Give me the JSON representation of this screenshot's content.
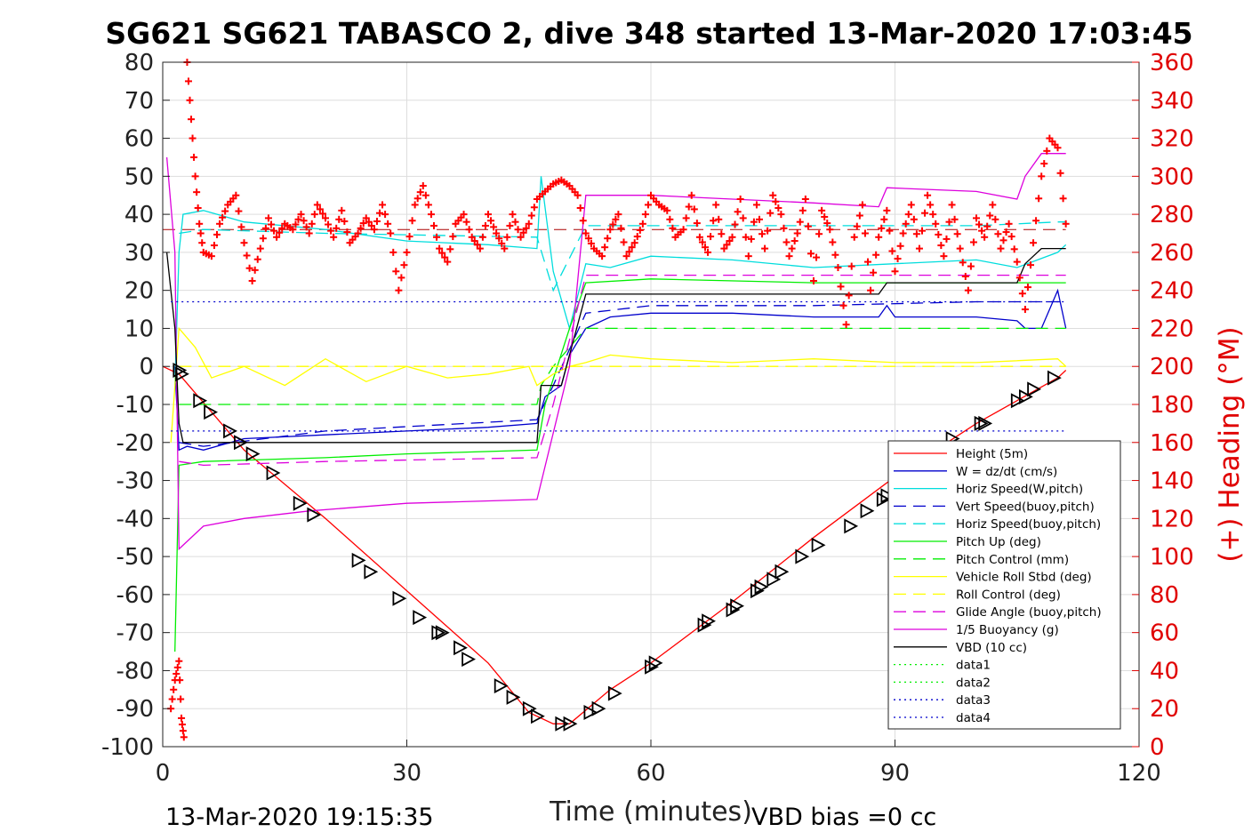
{
  "chart_data": {
    "type": "line",
    "title": "SG621 SG621 TABASCO 2, dive 348 started 13-Mar-2020 17:03:45",
    "xlabel": "Time (minutes)",
    "ylabel_right": "(+) Heading (°M)",
    "footer_left": "13-Mar-2020 19:15:35",
    "footer_right": "VBD bias =0 cc",
    "xlim": [
      0,
      120
    ],
    "ylim": [
      -100,
      80
    ],
    "ylim_right": [
      0,
      360
    ],
    "x_ticks": [
      "0",
      "30",
      "60",
      "90",
      "120"
    ],
    "y_ticks": [
      "80",
      "70",
      "60",
      "50",
      "40",
      "30",
      "20",
      "10",
      "0",
      "-10",
      "-20",
      "-30",
      "-40",
      "-50",
      "-60",
      "-70",
      "-80",
      "-90",
      "-100"
    ],
    "y_ticks_right": [
      "360",
      "340",
      "320",
      "300",
      "280",
      "260",
      "240",
      "220",
      "200",
      "180",
      "160",
      "140",
      "120",
      "100",
      "80",
      "60",
      "40",
      "20",
      "0"
    ],
    "grid": true,
    "legend_position": "bottom-right",
    "series": [
      {
        "name": "Height (5m)",
        "color": "#ff0000",
        "style": "solid",
        "x": [
          0,
          2,
          10,
          20,
          30,
          40,
          45,
          48,
          50,
          55,
          60,
          70,
          80,
          90,
          100,
          110,
          111
        ],
        "y": [
          0,
          -2,
          -22,
          -40,
          -59,
          -78,
          -91,
          -94,
          -94,
          -85,
          -78,
          -62,
          -45,
          -29,
          -15,
          -3,
          -1
        ]
      },
      {
        "name": "W = dz/dt (cm/s)",
        "color": "#0000cc",
        "style": "solid",
        "x": [
          1.5,
          2,
          3,
          5,
          10,
          20,
          30,
          40,
          46,
          47,
          49,
          50,
          52,
          55,
          60,
          70,
          80,
          88,
          89,
          90,
          100,
          105,
          106,
          108,
          110,
          111
        ],
        "y": [
          0,
          -22,
          -21,
          -22,
          -19,
          -18,
          -17,
          -16,
          -15,
          -8,
          -5,
          3,
          10,
          13,
          14,
          14,
          13,
          13,
          16,
          13,
          13,
          12,
          10,
          10,
          20,
          10
        ]
      },
      {
        "name": "Horiz Speed(W,pitch)",
        "color": "#00dddd",
        "style": "solid",
        "x": [
          1.5,
          2,
          2.5,
          5,
          10,
          20,
          30,
          40,
          46,
          46.5,
          48,
          50,
          52,
          55,
          60,
          70,
          80,
          90,
          100,
          105,
          110,
          111
        ],
        "y": [
          -5,
          30,
          40,
          41,
          38,
          36,
          33,
          32,
          31,
          50,
          25,
          10,
          27,
          26,
          29,
          28,
          26,
          27,
          28,
          26,
          30,
          32
        ]
      },
      {
        "name": "Vert Speed(buoy,pitch)",
        "color": "#0000cc",
        "style": "dashed",
        "x": [
          2,
          5,
          20,
          46,
          48,
          52,
          60,
          80,
          100,
          110,
          111
        ],
        "y": [
          -20,
          -21,
          -17,
          -14,
          -5,
          14,
          16,
          16,
          17,
          17,
          17
        ]
      },
      {
        "name": "Horiz Speed(buoy,pitch)",
        "color": "#00dddd",
        "style": "dashed",
        "x": [
          2,
          5,
          20,
          46,
          48,
          52,
          60,
          80,
          100,
          110,
          111
        ],
        "y": [
          35,
          36,
          35,
          34,
          20,
          37,
          37,
          37,
          37,
          38,
          38
        ]
      },
      {
        "name": "Pitch Up (deg)",
        "color": "#00ee00",
        "style": "solid",
        "x": [
          1.5,
          2,
          5,
          20,
          30,
          46,
          47,
          50,
          52,
          60,
          80,
          100,
          110,
          111
        ],
        "y": [
          -75,
          -26,
          -25,
          -24,
          -23,
          -22,
          -10,
          10,
          22,
          23,
          22,
          22,
          22,
          22
        ]
      },
      {
        "name": "Pitch Control (mm)",
        "color": "#00ee00",
        "style": "dashed",
        "x": [
          2,
          46,
          46.5,
          48,
          50,
          52,
          111
        ],
        "y": [
          -10,
          -10,
          -5,
          0,
          5,
          10,
          10
        ]
      },
      {
        "name": "Vehicle Roll Stbd (deg)",
        "color": "#ffff00",
        "style": "solid",
        "x": [
          1,
          2,
          4,
          6,
          10,
          15,
          20,
          25,
          30,
          35,
          40,
          45,
          46,
          48,
          50,
          52,
          55,
          60,
          70,
          80,
          90,
          100,
          110,
          111
        ],
        "y": [
          -20,
          10,
          5,
          -3,
          0,
          -5,
          2,
          -4,
          0,
          -3,
          -2,
          0,
          -5,
          -2,
          0,
          1,
          3,
          2,
          1,
          2,
          1,
          1,
          2,
          0
        ]
      },
      {
        "name": "Roll Control (deg)",
        "color": "#ffff00",
        "style": "dashed",
        "x": [
          2,
          46,
          50,
          111
        ],
        "y": [
          0,
          0,
          0,
          0
        ]
      },
      {
        "name": "Glide Angle (buoy,pitch)",
        "color": "#dd00dd",
        "style": "dashed",
        "x": [
          2,
          5,
          20,
          46,
          48,
          52,
          60,
          80,
          100,
          110,
          111
        ],
        "y": [
          -25,
          -26,
          -25,
          -24,
          -10,
          24,
          24,
          24,
          24,
          24,
          24
        ]
      },
      {
        "name": "1/5 Buoyancy (g)",
        "color": "#dd00dd",
        "style": "solid",
        "x": [
          0.5,
          1.5,
          2,
          5,
          10,
          18,
          30,
          46,
          50,
          52,
          60,
          70,
          80,
          88,
          89,
          100,
          105,
          106,
          108,
          111
        ],
        "y": [
          55,
          30,
          -48,
          -42,
          -40,
          -38,
          -36,
          -35,
          0,
          45,
          45,
          44,
          43,
          42,
          47,
          46,
          44,
          50,
          56,
          56
        ]
      },
      {
        "name": "VBD (10 cc)",
        "color": "#000000",
        "style": "solid",
        "x": [
          0.5,
          1.5,
          2,
          2.5,
          46,
          46.5,
          49,
          52,
          60,
          88,
          89,
          105,
          106,
          108,
          111
        ],
        "y": [
          30,
          10,
          -15,
          -20,
          -20,
          -5,
          -5,
          19,
          19,
          19,
          22,
          22,
          27,
          31,
          31
        ]
      },
      {
        "name": "data1",
        "color": "#00ee00",
        "style": "dotted",
        "x": [],
        "y": []
      },
      {
        "name": "data2",
        "color": "#00ee00",
        "style": "dotted",
        "x": [],
        "y": []
      },
      {
        "name": "data3",
        "color": "#0000cc",
        "style": "dotted",
        "x": [
          1,
          111
        ],
        "y": [
          17,
          17
        ]
      },
      {
        "name": "data4",
        "color": "#0000cc",
        "style": "dotted",
        "x": [
          1,
          111
        ],
        "y": [
          -17,
          -17
        ]
      }
    ],
    "reference_line": {
      "color": "#aa0000",
      "style": "dashed",
      "y_right": 272,
      "x": [
        0,
        111
      ]
    },
    "depth_markers": {
      "color": "#000000",
      "x": [
        2,
        2.3,
        4.5,
        5.8,
        8.2,
        9.5,
        11,
        13.5,
        16.8,
        18.5,
        24,
        25.5,
        29,
        31.5,
        33.8,
        34.3,
        36.5,
        37.5,
        41.5,
        43,
        45,
        46,
        49,
        50,
        52.5,
        53.5,
        55.5,
        60,
        60.5,
        66.5,
        67,
        70,
        70.5,
        73,
        73.5,
        75,
        76,
        78.5,
        80.5,
        84.5,
        86.5,
        88.5,
        89,
        91,
        92.5,
        94.5,
        97,
        100.5,
        101,
        105,
        106,
        107,
        109.5
      ],
      "y": [
        -1,
        -2,
        -9,
        -12,
        -17,
        -20,
        -23,
        -28,
        -36,
        -39,
        -51,
        -54,
        -61,
        -66,
        -70,
        -70,
        -74,
        -77,
        -84,
        -87,
        -90,
        -92,
        -94,
        -94,
        -91,
        -90,
        -86,
        -79,
        -78,
        -68,
        -67,
        -64,
        -63,
        -59,
        -58,
        -56,
        -54,
        -50,
        -47,
        -42,
        -38,
        -35,
        -34,
        -30,
        -27,
        -24,
        -19,
        -15,
        -15,
        -9,
        -8,
        -6,
        -3
      ]
    },
    "heading": {
      "name": "Heading",
      "color": "#ff0000",
      "marker": "+",
      "x": [
        1,
        1.5,
        2,
        2.3,
        2.6,
        3,
        3.5,
        4,
        4.5,
        5,
        6,
        7,
        8,
        9,
        10,
        11,
        12,
        13,
        14,
        15,
        16,
        17,
        18,
        19,
        20,
        21,
        22,
        23,
        24,
        25,
        26,
        27,
        28,
        29,
        30,
        31,
        32,
        33,
        34,
        35,
        36,
        37,
        38,
        39,
        40,
        41,
        42,
        43,
        44,
        45,
        46,
        47,
        48,
        49,
        50,
        51,
        52,
        53,
        54,
        55,
        56,
        57,
        58,
        59,
        60,
        61,
        62,
        63,
        64,
        65,
        66,
        67,
        68,
        69,
        70,
        71,
        72,
        73,
        74,
        75,
        76,
        77,
        78,
        79,
        80,
        81,
        82,
        83,
        84,
        85,
        86,
        87,
        88,
        89,
        90,
        91,
        92,
        93,
        94,
        95,
        96,
        97,
        98,
        99,
        100,
        101,
        102,
        103,
        104,
        105,
        106,
        107,
        108,
        109,
        110,
        111
      ],
      "y": [
        20,
        35,
        45,
        15,
        5,
        360,
        330,
        300,
        275,
        260,
        258,
        275,
        285,
        290,
        265,
        245,
        262,
        278,
        268,
        275,
        272,
        280,
        270,
        285,
        278,
        268,
        282,
        265,
        270,
        278,
        272,
        285,
        270,
        240,
        260,
        285,
        295,
        280,
        262,
        255,
        275,
        280,
        268,
        262,
        280,
        270,
        262,
        280,
        268,
        275,
        288,
        292,
        296,
        298,
        295,
        290,
        270,
        262,
        258,
        272,
        280,
        258,
        265,
        275,
        290,
        285,
        282,
        268,
        272,
        290,
        268,
        260,
        285,
        262,
        268,
        288,
        258,
        285,
        262,
        290,
        280,
        258,
        270,
        288,
        245,
        282,
        272,
        252,
        222,
        268,
        285,
        240,
        268,
        282,
        250,
        270,
        285,
        262,
        290,
        275,
        258,
        285,
        262,
        240,
        278,
        268,
        285,
        262,
        275,
        255,
        230,
        265,
        300,
        320,
        315,
        275
      ]
    }
  }
}
